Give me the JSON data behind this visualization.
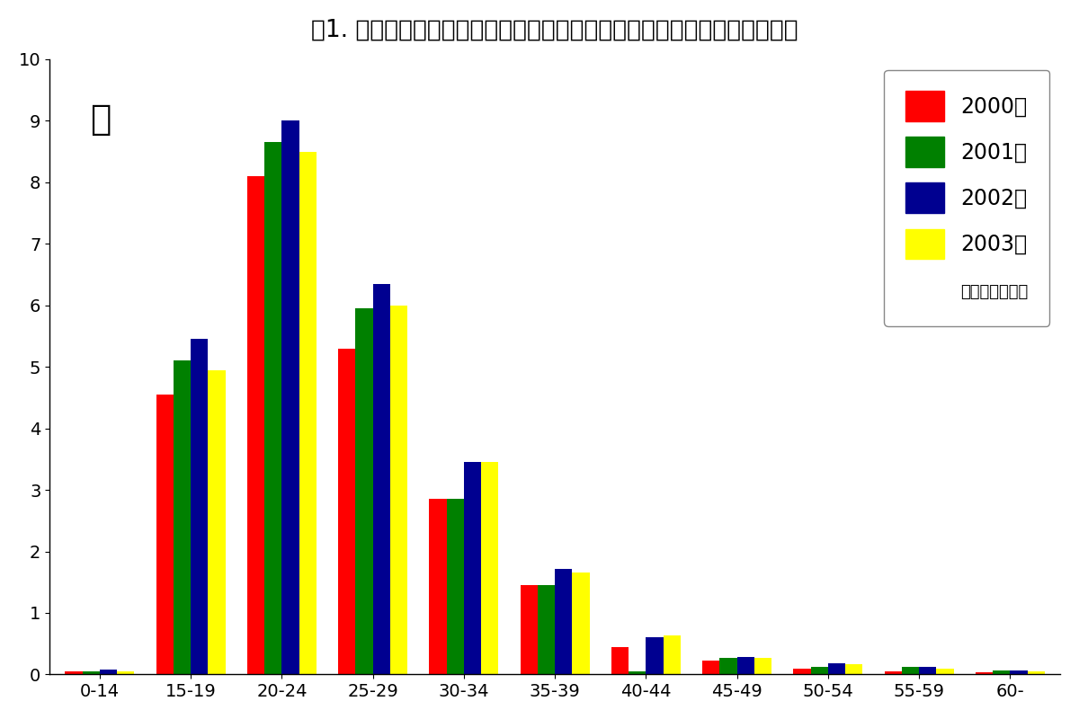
{
  "title": "図1. 年齢群別性器クラミジア感染症患者発生状況（感染症発生動向調査）",
  "categories": [
    "0-14",
    "15-19",
    "20-24",
    "25-29",
    "30-34",
    "35-39",
    "40-44",
    "45-49",
    "50-54",
    "55-59",
    "60-"
  ],
  "series": {
    "2000年": [
      0.05,
      4.55,
      8.1,
      5.3,
      2.85,
      1.45,
      0.45,
      0.22,
      0.1,
      0.05,
      0.03
    ],
    "2001年": [
      0.05,
      5.1,
      8.65,
      5.95,
      2.85,
      1.45,
      0.05,
      0.27,
      0.13,
      0.13,
      0.07
    ],
    "2002年": [
      0.08,
      5.45,
      9.0,
      6.35,
      3.45,
      1.72,
      0.6,
      0.28,
      0.18,
      0.12,
      0.07
    ],
    "2003年": [
      0.05,
      4.95,
      8.5,
      6.0,
      3.45,
      1.65,
      0.63,
      0.27,
      0.17,
      0.1,
      0.05
    ]
  },
  "colors": {
    "2000年": "#FF0000",
    "2001年": "#008000",
    "2002年": "#000090",
    "2003年": "#FFFF00"
  },
  "legend_labels": [
    "2000年",
    "2001年",
    "2002年",
    "2003年"
  ],
  "legend_sublabel": "（暫定データ）",
  "annotation": "女",
  "ylim": [
    0,
    10
  ],
  "yticks": [
    0,
    1,
    2,
    3,
    4,
    5,
    6,
    7,
    8,
    9,
    10
  ],
  "background_color": "#FFFFFF",
  "title_fontsize": 19,
  "axis_fontsize": 14,
  "legend_fontsize": 17,
  "sublabel_fontsize": 13,
  "annotation_fontsize": 28,
  "bar_width": 0.19
}
